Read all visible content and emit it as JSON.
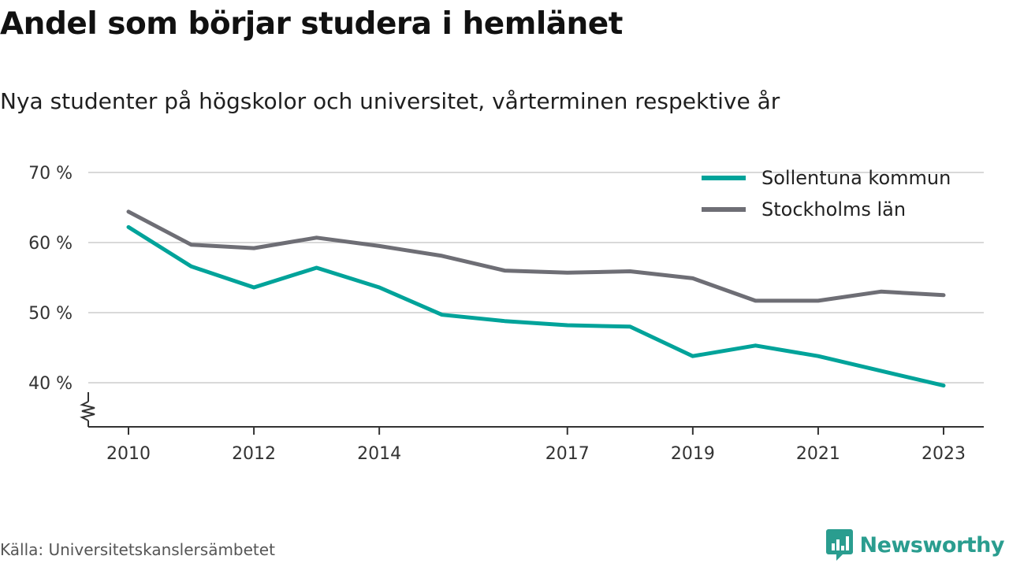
{
  "header": {
    "title": "Andel som börjar studera i hemlänet",
    "subtitle": "Nya studenter på högskolor och universitet, vårterminen respektive år"
  },
  "footer": {
    "source": "Källa: Universitetskanslersämbetet",
    "brand": "Newsworthy",
    "brand_icon": "bar-chart-speech-bubble-icon"
  },
  "colors": {
    "accent": "#00a39a",
    "secondary": "#6e6e75",
    "grid": "#d9d9d9",
    "brand": "#2a9d8f"
  },
  "chart_data": {
    "type": "line",
    "title": "Andel som börjar studera i hemlänet",
    "subtitle": "Nya studenter på högskolor och universitet, vårterminen respektive år",
    "xlabel": "",
    "ylabel": "",
    "xlim": [
      2010,
      2023
    ],
    "ylim": [
      34,
      70
    ],
    "yticks": [
      40,
      50,
      60,
      70
    ],
    "ytick_labels": [
      "40 %",
      "50 %",
      "60 %",
      "70 %"
    ],
    "xticks": [
      2010,
      2012,
      2014,
      2017,
      2019,
      2021,
      2023
    ],
    "xtick_labels": [
      "2010",
      "2012",
      "2014",
      "2017",
      "2019",
      "2021",
      "2023"
    ],
    "axis_break": true,
    "grid": true,
    "legend_position": "top-right",
    "x": [
      2010,
      2011,
      2012,
      2013,
      2014,
      2015,
      2016,
      2017,
      2018,
      2019,
      2020,
      2021,
      2022,
      2023
    ],
    "series": [
      {
        "name": "Sollentuna kommun",
        "color": "#00a39a",
        "values": [
          62.2,
          56.6,
          53.6,
          56.4,
          53.6,
          49.7,
          48.8,
          48.2,
          48.0,
          43.8,
          45.3,
          43.8,
          41.7,
          39.6
        ]
      },
      {
        "name": "Stockholms län",
        "color": "#6e6e75",
        "values": [
          64.4,
          59.7,
          59.2,
          60.7,
          59.5,
          58.1,
          56.0,
          55.7,
          55.9,
          54.9,
          51.7,
          51.7,
          53.0,
          52.5
        ]
      }
    ]
  }
}
